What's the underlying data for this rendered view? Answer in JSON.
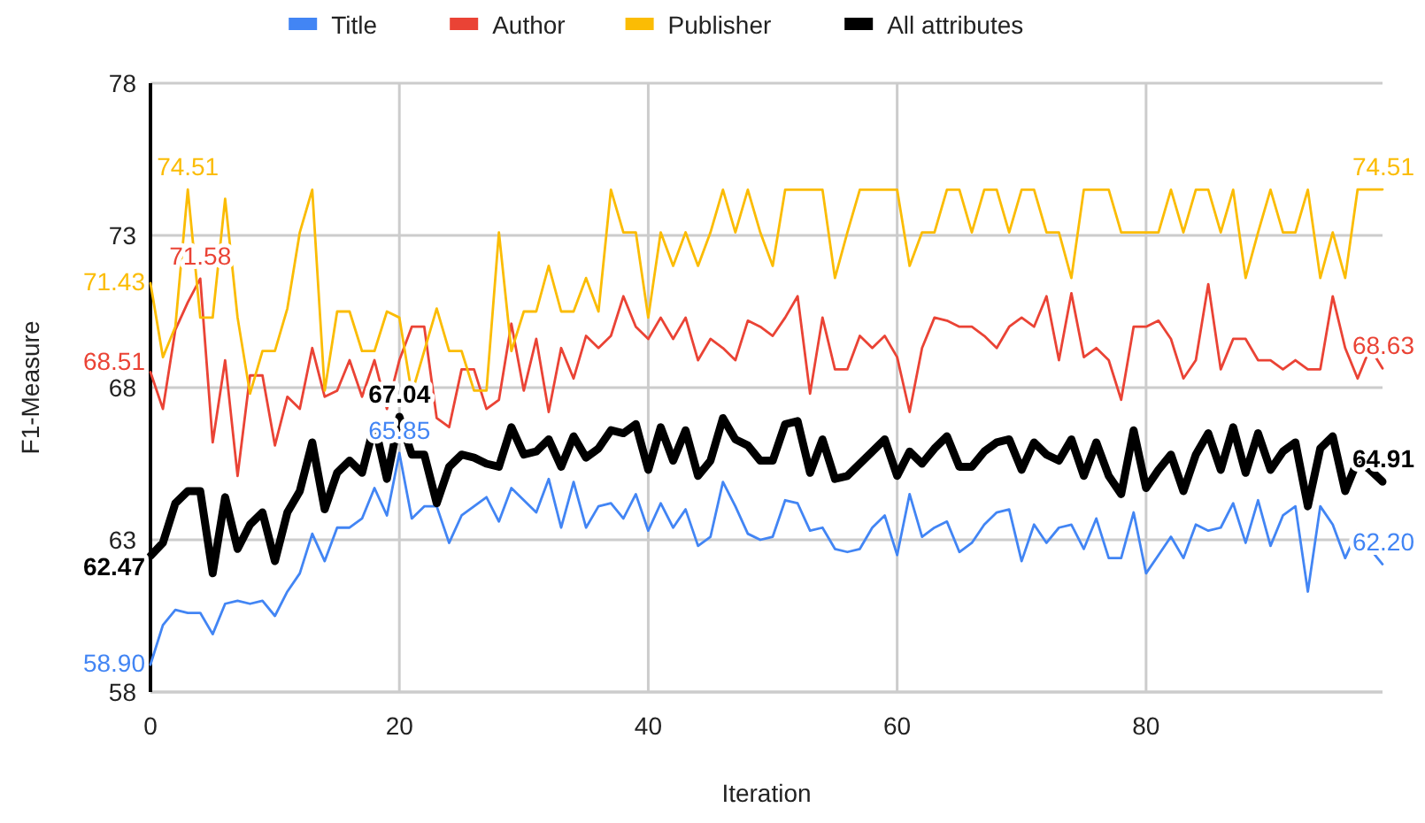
{
  "chart_data": {
    "type": "line",
    "xlabel": "Iteration",
    "ylabel": "F1-Measure",
    "x": [
      0,
      1,
      2,
      3,
      4,
      5,
      6,
      7,
      8,
      9,
      10,
      11,
      12,
      13,
      14,
      15,
      16,
      17,
      18,
      19,
      20,
      21,
      22,
      23,
      24,
      25,
      26,
      27,
      28,
      29,
      30,
      31,
      32,
      33,
      34,
      35,
      36,
      37,
      38,
      39,
      40,
      41,
      42,
      43,
      44,
      45,
      46,
      47,
      48,
      49,
      50,
      51,
      52,
      53,
      54,
      55,
      56,
      57,
      58,
      59,
      60,
      61,
      62,
      63,
      64,
      65,
      66,
      67,
      68,
      69,
      70,
      71,
      72,
      73,
      74,
      75,
      76,
      77,
      78,
      79,
      80,
      81,
      82,
      83,
      84,
      85,
      86,
      87,
      88,
      89,
      90,
      91,
      92,
      93,
      94,
      95,
      96,
      97,
      98,
      99
    ],
    "xlim": [
      0,
      99
    ],
    "xticks": [
      0,
      20,
      40,
      60,
      80
    ],
    "ylim": [
      58,
      78
    ],
    "yticks": [
      58,
      63,
      68,
      73,
      78
    ],
    "grid": true,
    "legend": "top",
    "marker": "none",
    "line_style": "solid",
    "series": [
      {
        "name": "Title",
        "color": "#4285f4",
        "values": [
          58.9,
          60.2,
          60.7,
          60.6,
          60.6,
          59.9,
          60.9,
          61.0,
          60.9,
          61.0,
          60.5,
          61.3,
          61.9,
          63.2,
          62.3,
          63.4,
          63.4,
          63.7,
          64.7,
          63.8,
          65.85,
          63.7,
          64.1,
          64.1,
          62.9,
          63.8,
          64.1,
          64.4,
          63.6,
          64.7,
          64.3,
          63.9,
          65.0,
          63.4,
          64.9,
          63.4,
          64.1,
          64.2,
          63.7,
          64.5,
          63.3,
          64.2,
          63.4,
          64.0,
          62.8,
          63.1,
          64.9,
          64.1,
          63.2,
          63.0,
          63.1,
          64.3,
          64.2,
          63.3,
          63.4,
          62.7,
          62.6,
          62.7,
          63.4,
          63.8,
          62.5,
          64.5,
          63.1,
          63.4,
          63.6,
          62.6,
          62.9,
          63.5,
          63.9,
          64.0,
          62.3,
          63.5,
          62.9,
          63.4,
          63.5,
          62.7,
          63.7,
          62.4,
          62.4,
          63.9,
          61.9,
          62.5,
          63.1,
          62.4,
          63.5,
          63.3,
          63.4,
          64.2,
          62.9,
          64.3,
          62.8,
          63.8,
          64.1,
          61.3,
          64.1,
          63.5,
          62.4,
          63.3,
          62.7,
          62.2
        ],
        "value_labels": [
          "58.90",
          null,
          null,
          null,
          null,
          null,
          null,
          null,
          null,
          null,
          null,
          null,
          null,
          null,
          null,
          null,
          null,
          null,
          null,
          null,
          "65.85",
          null,
          null,
          null,
          null,
          null,
          null,
          null,
          null,
          null,
          null,
          null,
          null,
          null,
          null,
          null,
          null,
          null,
          null,
          null,
          null,
          null,
          null,
          null,
          null,
          null,
          null,
          null,
          null,
          null,
          null,
          null,
          null,
          null,
          null,
          null,
          null,
          null,
          null,
          null,
          null,
          null,
          null,
          null,
          null,
          null,
          null,
          null,
          null,
          null,
          null,
          null,
          null,
          null,
          null,
          null,
          null,
          null,
          null,
          null,
          null,
          null,
          null,
          null,
          null,
          null,
          null,
          null,
          null,
          null,
          null,
          null,
          null,
          null,
          null,
          null,
          null,
          null,
          null,
          "62.20"
        ]
      },
      {
        "name": "Author",
        "color": "#ea4335",
        "values": [
          68.51,
          67.3,
          69.9,
          70.8,
          71.58,
          66.2,
          68.9,
          65.1,
          68.4,
          68.4,
          66.1,
          67.7,
          67.3,
          69.3,
          67.7,
          67.9,
          68.9,
          67.7,
          68.9,
          67.3,
          68.9,
          70.0,
          70.0,
          67.0,
          66.7,
          68.6,
          68.6,
          67.3,
          67.6,
          70.1,
          67.9,
          69.6,
          67.2,
          69.3,
          68.3,
          69.7,
          69.3,
          69.7,
          71.0,
          70.0,
          69.6,
          70.3,
          69.6,
          70.3,
          68.9,
          69.6,
          69.3,
          68.9,
          70.2,
          70.0,
          69.7,
          70.3,
          71.0,
          67.8,
          70.3,
          68.6,
          68.6,
          69.7,
          69.3,
          69.7,
          69.0,
          67.2,
          69.3,
          70.3,
          70.2,
          70.0,
          70.0,
          69.7,
          69.3,
          70.0,
          70.3,
          70.0,
          71.0,
          68.9,
          71.1,
          69.0,
          69.3,
          68.9,
          67.6,
          70.0,
          70.0,
          70.2,
          69.6,
          68.3,
          68.9,
          71.4,
          68.6,
          69.6,
          69.6,
          68.9,
          68.9,
          68.6,
          68.9,
          68.6,
          68.6,
          71.0,
          69.3,
          68.3,
          69.3,
          68.63
        ],
        "value_labels": [
          "68.51",
          null,
          null,
          null,
          "71.58",
          null,
          null,
          null,
          null,
          null,
          null,
          null,
          null,
          null,
          null,
          null,
          null,
          null,
          null,
          null,
          null,
          null,
          null,
          null,
          null,
          null,
          null,
          null,
          null,
          null,
          null,
          null,
          null,
          null,
          null,
          null,
          null,
          null,
          null,
          null,
          null,
          null,
          null,
          null,
          null,
          null,
          null,
          null,
          null,
          null,
          null,
          null,
          null,
          null,
          null,
          null,
          null,
          null,
          null,
          null,
          null,
          null,
          null,
          null,
          null,
          null,
          null,
          null,
          null,
          null,
          null,
          null,
          null,
          null,
          null,
          null,
          null,
          null,
          null,
          null,
          null,
          null,
          null,
          null,
          null,
          null,
          null,
          null,
          null,
          null,
          null,
          null,
          null,
          null,
          null,
          null,
          null,
          null,
          null,
          "68.63"
        ]
      },
      {
        "name": "Publisher",
        "color": "#fbbc04",
        "values": [
          71.43,
          69.0,
          70.0,
          74.51,
          70.3,
          70.3,
          74.2,
          70.3,
          67.8,
          69.2,
          69.2,
          70.6,
          73.1,
          74.5,
          67.9,
          70.5,
          70.5,
          69.2,
          69.2,
          70.5,
          70.3,
          67.8,
          69.2,
          70.6,
          69.2,
          69.2,
          67.9,
          67.9,
          73.1,
          69.2,
          70.5,
          70.5,
          72.0,
          70.5,
          70.5,
          71.6,
          70.5,
          74.5,
          73.1,
          73.1,
          70.3,
          73.1,
          72.0,
          73.1,
          72.0,
          73.1,
          74.5,
          73.1,
          74.5,
          73.1,
          72.0,
          74.5,
          74.5,
          74.5,
          74.5,
          71.6,
          73.1,
          74.5,
          74.5,
          74.5,
          74.5,
          72.0,
          73.1,
          73.1,
          74.5,
          74.5,
          73.1,
          74.5,
          74.5,
          73.1,
          74.5,
          74.5,
          73.1,
          73.1,
          71.6,
          74.5,
          74.5,
          74.5,
          73.1,
          73.1,
          73.1,
          73.1,
          74.5,
          73.1,
          74.5,
          74.5,
          73.1,
          74.5,
          71.6,
          73.1,
          74.5,
          73.1,
          73.1,
          74.5,
          71.6,
          73.1,
          71.6,
          74.51,
          74.51,
          74.51
        ],
        "value_labels": [
          "71.43",
          null,
          null,
          "74.51",
          null,
          null,
          null,
          null,
          null,
          null,
          null,
          null,
          null,
          null,
          null,
          null,
          null,
          null,
          null,
          null,
          null,
          null,
          null,
          null,
          null,
          null,
          null,
          null,
          null,
          null,
          null,
          null,
          null,
          null,
          null,
          null,
          null,
          null,
          null,
          null,
          null,
          null,
          null,
          null,
          null,
          null,
          null,
          null,
          null,
          null,
          null,
          null,
          null,
          null,
          null,
          null,
          null,
          null,
          null,
          null,
          null,
          null,
          null,
          null,
          null,
          null,
          null,
          null,
          null,
          null,
          null,
          null,
          null,
          null,
          null,
          null,
          null,
          null,
          null,
          null,
          null,
          null,
          null,
          null,
          null,
          null,
          null,
          null,
          null,
          null,
          null,
          null,
          null,
          null,
          null,
          null,
          null,
          null,
          null,
          "74.51"
        ]
      },
      {
        "name": "All attributes",
        "color": "#000000",
        "values": [
          62.47,
          62.9,
          64.2,
          64.6,
          64.6,
          61.9,
          64.4,
          62.7,
          63.5,
          63.9,
          62.3,
          63.9,
          64.6,
          66.2,
          64.0,
          65.2,
          65.6,
          65.2,
          66.8,
          65.0,
          67.04,
          65.8,
          65.8,
          64.2,
          65.4,
          65.8,
          65.7,
          65.5,
          65.4,
          66.7,
          65.8,
          65.9,
          66.3,
          65.4,
          66.4,
          65.7,
          66.0,
          66.6,
          66.5,
          66.8,
          65.3,
          66.7,
          65.6,
          66.6,
          65.1,
          65.6,
          67.0,
          66.3,
          66.1,
          65.6,
          65.6,
          66.8,
          66.9,
          65.2,
          66.3,
          65.0,
          65.1,
          65.5,
          65.9,
          66.3,
          65.1,
          65.9,
          65.5,
          66.0,
          66.4,
          65.4,
          65.4,
          65.9,
          66.2,
          66.3,
          65.3,
          66.2,
          65.8,
          65.6,
          66.3,
          65.1,
          66.2,
          65.1,
          64.5,
          66.6,
          64.7,
          65.3,
          65.8,
          64.6,
          65.8,
          66.5,
          65.3,
          66.7,
          65.2,
          66.5,
          65.3,
          65.9,
          66.2,
          64.1,
          66.0,
          66.4,
          64.6,
          65.6,
          65.3,
          64.91
        ],
        "value_labels": [
          "62.47",
          null,
          null,
          null,
          null,
          null,
          null,
          null,
          null,
          null,
          null,
          null,
          null,
          null,
          null,
          null,
          null,
          null,
          null,
          null,
          "67.04",
          null,
          null,
          null,
          null,
          null,
          null,
          null,
          null,
          null,
          null,
          null,
          null,
          null,
          null,
          null,
          null,
          null,
          null,
          null,
          null,
          null,
          null,
          null,
          null,
          null,
          null,
          null,
          null,
          null,
          null,
          null,
          null,
          null,
          null,
          null,
          null,
          null,
          null,
          null,
          null,
          null,
          null,
          null,
          null,
          null,
          null,
          null,
          null,
          null,
          null,
          null,
          null,
          null,
          null,
          null,
          null,
          null,
          null,
          null,
          null,
          null,
          null,
          null,
          null,
          null,
          null,
          null,
          null,
          null,
          null,
          null,
          null,
          null,
          null,
          null,
          null,
          null,
          null,
          "64.91"
        ]
      }
    ]
  }
}
